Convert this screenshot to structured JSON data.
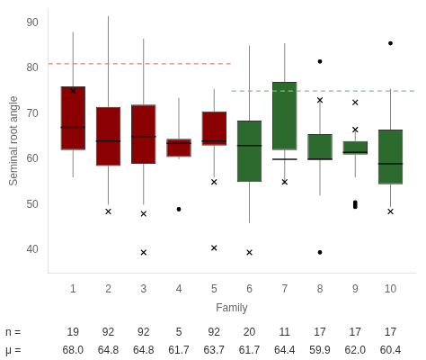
{
  "chart_data": {
    "type": "box",
    "xlabel": "Family",
    "ylabel": "Seminal root angle",
    "x": [
      1,
      2,
      3,
      4,
      5,
      6,
      7,
      8,
      9,
      10
    ],
    "xlim": [
      0.3,
      10.7
    ],
    "xticks": [
      1,
      2,
      3,
      4,
      5,
      6,
      7,
      8,
      9,
      10
    ],
    "ylim": [
      35,
      93
    ],
    "yticks": [
      40,
      50,
      60,
      70,
      80,
      90
    ],
    "grid": false,
    "colors": [
      "#8b0000",
      "#8b0000",
      "#8b0000",
      "#8b0000",
      "#8b0000",
      "#2d6a2d",
      "#2d6a2d",
      "#2d6a2d",
      "#2d6a2d",
      "#2d6a2d"
    ],
    "boxes": [
      {
        "q1": 62.0,
        "median": 67.0,
        "q3": 76.0,
        "whislo": 56.0,
        "whishi": 88.0,
        "outliers": [
          75.0
        ],
        "outlier_markers": [
          "x"
        ]
      },
      {
        "q1": 58.5,
        "median": 64.0,
        "q3": 71.5,
        "whislo": 50.0,
        "whishi": 91.5,
        "outliers": [
          48.5
        ],
        "outlier_markers": [
          "x"
        ]
      },
      {
        "q1": 59.0,
        "median": 65.0,
        "q3": 72.0,
        "whislo": 50.0,
        "whishi": 86.5,
        "outliers": [
          39.5,
          48.0
        ],
        "outlier_markers": [
          "x",
          "x"
        ]
      },
      {
        "q1": 60.5,
        "median": 63.5,
        "q3": 64.5,
        "whislo": 60.0,
        "whishi": 73.5,
        "outliers": [
          49.0
        ],
        "outlier_markers": [
          "point"
        ]
      },
      {
        "q1": 63.0,
        "median": 64.0,
        "q3": 70.5,
        "whislo": 56.0,
        "whishi": 75.5,
        "outliers": [
          40.5,
          55.0
        ],
        "outlier_markers": [
          "x",
          "x"
        ]
      },
      {
        "q1": 55.0,
        "median": 63.0,
        "q3": 68.5,
        "whislo": 46.0,
        "whishi": 85.0,
        "outliers": [
          39.5
        ],
        "outlier_markers": [
          "x"
        ]
      },
      {
        "q1": 62.0,
        "median": 60.0,
        "q3": 77.0,
        "whislo": 54.5,
        "whishi": 85.5,
        "outliers": [
          55.0
        ],
        "outlier_markers": [
          "x"
        ]
      },
      {
        "q1": 60.0,
        "median": 60.0,
        "q3": 65.5,
        "whislo": 52.0,
        "whishi": 73.5,
        "outliers": [
          39.5,
          73.0,
          81.5
        ],
        "outlier_markers": [
          "point",
          "x",
          "point"
        ]
      },
      {
        "q1": 61.0,
        "median": 61.5,
        "q3": 64.0,
        "whislo": 56.0,
        "whishi": 66.5,
        "outliers": [
          49.5,
          50.0,
          50.5,
          66.5,
          72.5
        ],
        "outlier_markers": [
          "point",
          "point",
          "point",
          "x",
          "x"
        ]
      },
      {
        "q1": 54.5,
        "median": 59.0,
        "q3": 66.5,
        "whislo": 49.5,
        "whishi": 75.5,
        "outliers": [
          48.5,
          85.5
        ],
        "outlier_markers": [
          "x",
          "point"
        ]
      }
    ],
    "reference_lines": [
      {
        "value": 81.0,
        "color": "#e08080",
        "line_style": "dashed"
      },
      {
        "value": 75.0,
        "color": "#80c080",
        "line_style": "dashed"
      }
    ],
    "annotation_rows": [
      {
        "label": "n =",
        "values": [
          19,
          92,
          92,
          5,
          92,
          20,
          11,
          17,
          17,
          17
        ]
      },
      {
        "label": "μ =",
        "values": [
          68.0,
          64.8,
          64.8,
          61.7,
          63.7,
          61.7,
          64.4,
          59.9,
          62.0,
          60.4
        ],
        "value_labels": [
          "68.0",
          "64.8",
          "64.8",
          "61.7",
          "63.7",
          "61.7",
          "64.4",
          "59.9",
          "62.0",
          "60.4"
        ]
      }
    ]
  }
}
